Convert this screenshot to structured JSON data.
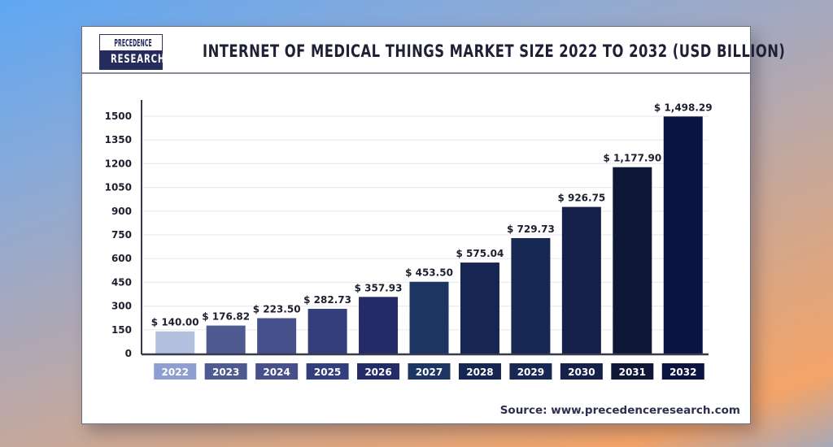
{
  "header": {
    "logo_top": "PRECEDENCE",
    "logo_bottom": "RESEARCH",
    "title": "INTERNET OF MEDICAL THINGS MARKET SIZE 2022 TO 2032 (USD BILLION)"
  },
  "footer": {
    "source": "Source: www.precedenceresearch.com"
  },
  "colors": {
    "background_left": "#5ea7f3",
    "background_right": "#f4a468",
    "axis": "#3a3b4a",
    "grid": "#ececf0"
  },
  "chart_data": {
    "type": "bar",
    "title": "INTERNET OF MEDICAL THINGS MARKET SIZE 2022 TO 2032 (USD BILLION)",
    "xlabel": "",
    "ylabel": "",
    "ylim": [
      0,
      1500
    ],
    "yticks": [
      0,
      150,
      300,
      450,
      600,
      750,
      900,
      1050,
      1200,
      1350,
      1500
    ],
    "grid": true,
    "legend": "none",
    "categories": [
      "2022",
      "2023",
      "2024",
      "2025",
      "2026",
      "2027",
      "2028",
      "2029",
      "2030",
      "2031",
      "2032"
    ],
    "values": [
      140.0,
      176.82,
      223.5,
      282.73,
      357.93,
      453.5,
      575.04,
      729.73,
      926.75,
      1177.9,
      1498.29
    ],
    "value_labels": [
      "$ 140.00",
      "$ 176.82",
      "$ 223.50",
      "$ 282.73",
      "$ 357.93",
      "$ 453.50",
      "$ 575.04",
      "$ 729.73",
      "$ 926.75",
      "$ 1,177.90",
      "$ 1,498.29"
    ],
    "bar_colors": [
      "#b3c0e0",
      "#4e5b91",
      "#46508a",
      "#333e7c",
      "#232b68",
      "#1c3562",
      "#172552",
      "#172852",
      "#15214a",
      "#0f1738",
      "#0b1440"
    ]
  }
}
